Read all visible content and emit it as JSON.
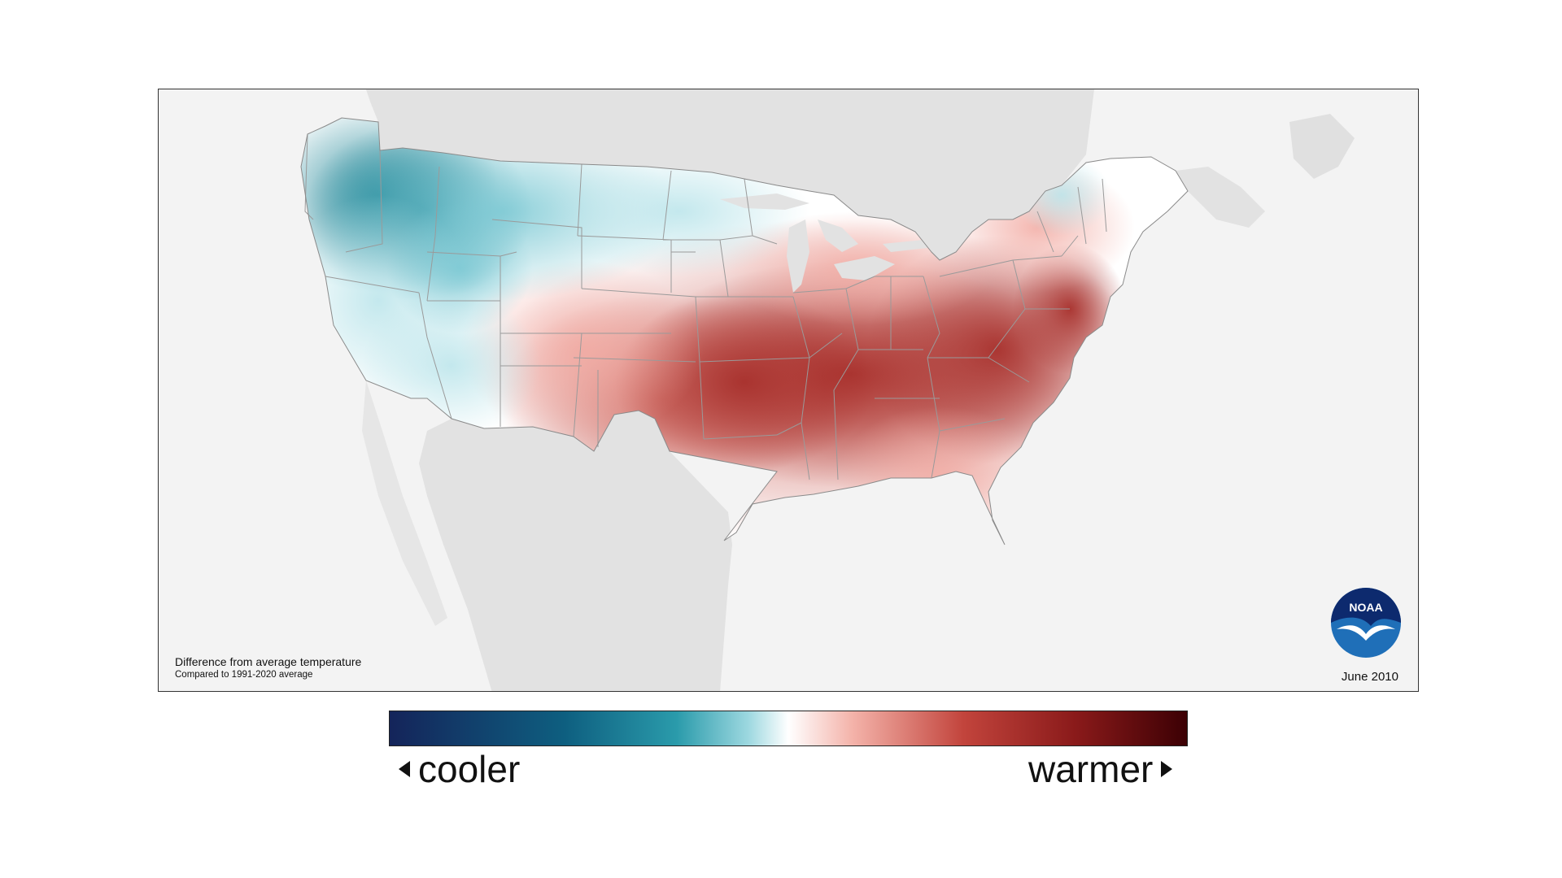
{
  "map": {
    "caption_title": "Difference from average temperature",
    "caption_subtitle": "Compared to 1991-2020 average",
    "date": "June 2010",
    "logo_text": "NOAA",
    "background_color": "#f3f3f3",
    "land_color": "#e2e2e2",
    "border_color": "#9a9a9a"
  },
  "legend": {
    "cool_label": "cooler",
    "warm_label": "warmer",
    "gradient_stops": [
      "#14245a",
      "#0e5f80",
      "#2a9bab",
      "#9dd8e0",
      "#ffffff",
      "#f4b3aa",
      "#c2443c",
      "#8a1a1a",
      "#3c0004"
    ]
  },
  "anomaly_regions": [
    {
      "region": "Pacific Northwest",
      "anomaly": "cool-strong",
      "color": "#2f93a3"
    },
    {
      "region": "Northern Rockies and Plains",
      "anomaly": "cool",
      "color": "#8fd0da"
    },
    {
      "region": "California and Great Basin",
      "anomaly": "cool-mild",
      "color": "#bfe7ec"
    },
    {
      "region": "Southwest",
      "anomaly": "cool-mild",
      "color": "#d6f0f3"
    },
    {
      "region": "Southern Plains",
      "anomaly": "warm",
      "color": "#d8776f"
    },
    {
      "region": "Central and Southeast",
      "anomaly": "warm-strong",
      "color": "#b94a44"
    },
    {
      "region": "Mid-Atlantic",
      "anomaly": "warm-strong",
      "color": "#b5403b"
    },
    {
      "region": "Florida and Gulf Coast",
      "anomaly": "warm-mild",
      "color": "#f0a9a2"
    },
    {
      "region": "New England",
      "anomaly": "near-average",
      "color": "#fbe3e0"
    }
  ]
}
